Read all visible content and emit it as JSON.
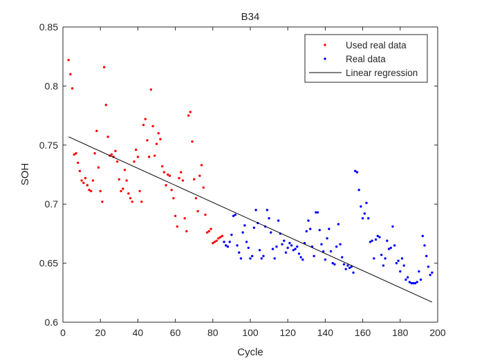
{
  "chart_data": {
    "type": "scatter",
    "title": "B34",
    "xlabel": "Cycle",
    "ylabel": "SOH",
    "xlim": [
      0,
      200
    ],
    "ylim": [
      0.6,
      0.85
    ],
    "xticks": [
      "0",
      "20",
      "40",
      "60",
      "80",
      "100",
      "120",
      "140",
      "160",
      "180",
      "200"
    ],
    "yticks": [
      "0.6",
      "0.65",
      "0.7",
      "0.75",
      "0.8",
      "0.85"
    ],
    "grid": false,
    "legend_position": "top-right",
    "series": [
      {
        "name": "Used real data",
        "kind": "points",
        "color": "#ff0000",
        "points": [
          [
            3,
            0.822
          ],
          [
            4,
            0.81
          ],
          [
            5,
            0.798
          ],
          [
            6,
            0.742
          ],
          [
            7,
            0.743
          ],
          [
            8,
            0.735
          ],
          [
            9,
            0.728
          ],
          [
            10,
            0.72
          ],
          [
            11,
            0.718
          ],
          [
            12,
            0.722
          ],
          [
            13,
            0.716
          ],
          [
            14,
            0.712
          ],
          [
            15,
            0.711
          ],
          [
            16,
            0.72
          ],
          [
            17,
            0.743
          ],
          [
            18,
            0.762
          ],
          [
            19,
            0.731
          ],
          [
            20,
            0.711
          ],
          [
            21,
            0.702
          ],
          [
            22,
            0.816
          ],
          [
            23,
            0.784
          ],
          [
            24,
            0.757
          ],
          [
            25,
            0.741
          ],
          [
            26,
            0.742
          ],
          [
            27,
            0.74
          ],
          [
            28,
            0.745
          ],
          [
            29,
            0.736
          ],
          [
            30,
            0.721
          ],
          [
            31,
            0.711
          ],
          [
            32,
            0.713
          ],
          [
            33,
            0.729
          ],
          [
            34,
            0.72
          ],
          [
            35,
            0.709
          ],
          [
            36,
            0.705
          ],
          [
            37,
            0.702
          ],
          [
            38,
            0.736
          ],
          [
            39,
            0.746
          ],
          [
            40,
            0.74
          ],
          [
            41,
            0.711
          ],
          [
            42,
            0.702
          ],
          [
            43,
            0.767
          ],
          [
            44,
            0.772
          ],
          [
            45,
            0.754
          ],
          [
            46,
            0.74
          ],
          [
            47,
            0.797
          ],
          [
            48,
            0.766
          ],
          [
            49,
            0.741
          ],
          [
            50,
            0.751
          ],
          [
            51,
            0.76
          ],
          [
            52,
            0.755
          ],
          [
            53,
            0.732
          ],
          [
            54,
            0.727
          ],
          [
            55,
            0.716
          ],
          [
            56,
            0.725
          ],
          [
            57,
            0.724
          ],
          [
            58,
            0.712
          ],
          [
            59,
            0.705
          ],
          [
            60,
            0.69
          ],
          [
            61,
            0.681
          ],
          [
            62,
            0.722
          ],
          [
            63,
            0.727
          ],
          [
            64,
            0.72
          ],
          [
            65,
            0.688
          ],
          [
            66,
            0.677
          ],
          [
            67,
            0.775
          ],
          [
            68,
            0.778
          ],
          [
            69,
            0.753
          ],
          [
            70,
            0.721
          ],
          [
            71,
            0.705
          ],
          [
            72,
            0.694
          ],
          [
            73,
            0.724
          ],
          [
            74,
            0.733
          ],
          [
            75,
            0.714
          ],
          [
            76,
            0.691
          ],
          [
            77,
            0.676
          ],
          [
            78,
            0.677
          ],
          [
            79,
            0.679
          ],
          [
            80,
            0.667
          ],
          [
            81,
            0.668
          ],
          [
            82,
            0.669
          ],
          [
            83,
            0.671
          ],
          [
            84,
            0.672
          ],
          [
            85,
            0.673
          ]
        ]
      },
      {
        "name": "Real data",
        "kind": "points",
        "color": "#0000ff",
        "points": [
          [
            86,
            0.668
          ],
          [
            87,
            0.665
          ],
          [
            88,
            0.664
          ],
          [
            89,
            0.668
          ],
          [
            90,
            0.674
          ],
          [
            91,
            0.69
          ],
          [
            92,
            0.691
          ],
          [
            93,
            0.665
          ],
          [
            94,
            0.659
          ],
          [
            95,
            0.654
          ],
          [
            96,
            0.676
          ],
          [
            97,
            0.682
          ],
          [
            98,
            0.668
          ],
          [
            99,
            0.663
          ],
          [
            100,
            0.654
          ],
          [
            101,
            0.656
          ],
          [
            102,
            0.68
          ],
          [
            103,
            0.695
          ],
          [
            104,
            0.684
          ],
          [
            105,
            0.661
          ],
          [
            106,
            0.654
          ],
          [
            107,
            0.656
          ],
          [
            108,
            0.681
          ],
          [
            109,
            0.695
          ],
          [
            110,
            0.688
          ],
          [
            111,
            0.676
          ],
          [
            112,
            0.662
          ],
          [
            113,
            0.654
          ],
          [
            114,
            0.664
          ],
          [
            115,
            0.686
          ],
          [
            116,
            0.675
          ],
          [
            117,
            0.666
          ],
          [
            118,
            0.669
          ],
          [
            119,
            0.659
          ],
          [
            120,
            0.663
          ],
          [
            121,
            0.667
          ],
          [
            122,
            0.665
          ],
          [
            123,
            0.661
          ],
          [
            124,
            0.662
          ],
          [
            125,
            0.664
          ],
          [
            126,
            0.658
          ],
          [
            127,
            0.655
          ],
          [
            128,
            0.653
          ],
          [
            129,
            0.667
          ],
          [
            130,
            0.677
          ],
          [
            131,
            0.686
          ],
          [
            132,
            0.679
          ],
          [
            133,
            0.664
          ],
          [
            134,
            0.656
          ],
          [
            135,
            0.693
          ],
          [
            136,
            0.693
          ],
          [
            137,
            0.678
          ],
          [
            138,
            0.666
          ],
          [
            139,
            0.66
          ],
          [
            140,
            0.653
          ],
          [
            141,
            0.671
          ],
          [
            142,
            0.679
          ],
          [
            143,
            0.66
          ],
          [
            144,
            0.65
          ],
          [
            145,
            0.649
          ],
          [
            146,
            0.664
          ],
          [
            147,
            0.683
          ],
          [
            148,
            0.666
          ],
          [
            149,
            0.655
          ],
          [
            150,
            0.649
          ],
          [
            151,
            0.645
          ],
          [
            152,
            0.648
          ],
          [
            153,
            0.646
          ],
          [
            154,
            0.647
          ],
          [
            155,
            0.642
          ],
          [
            156,
            0.728
          ],
          [
            157,
            0.727
          ],
          [
            158,
            0.712
          ],
          [
            159,
            0.698
          ],
          [
            160,
            0.688
          ],
          [
            161,
            0.692
          ],
          [
            162,
            0.701
          ],
          [
            163,
            0.688
          ],
          [
            164,
            0.668
          ],
          [
            165,
            0.669
          ],
          [
            166,
            0.654
          ],
          [
            167,
            0.67
          ],
          [
            168,
            0.673
          ],
          [
            169,
            0.672
          ],
          [
            170,
            0.657
          ],
          [
            171,
            0.648
          ],
          [
            172,
            0.654
          ],
          [
            173,
            0.669
          ],
          [
            174,
            0.662
          ],
          [
            175,
            0.663
          ],
          [
            176,
            0.681
          ],
          [
            177,
            0.665
          ],
          [
            178,
            0.65
          ],
          [
            179,
            0.652
          ],
          [
            180,
            0.643
          ],
          [
            181,
            0.654
          ],
          [
            182,
            0.648
          ],
          [
            183,
            0.636
          ],
          [
            184,
            0.638
          ],
          [
            185,
            0.634
          ],
          [
            186,
            0.633
          ],
          [
            187,
            0.633
          ],
          [
            188,
            0.633
          ],
          [
            189,
            0.634
          ],
          [
            190,
            0.643
          ],
          [
            191,
            0.636
          ],
          [
            192,
            0.673
          ],
          [
            193,
            0.665
          ],
          [
            194,
            0.656
          ],
          [
            195,
            0.647
          ],
          [
            196,
            0.64
          ],
          [
            197,
            0.642
          ]
        ]
      },
      {
        "name": "Linear regression",
        "kind": "line",
        "color": "#000000",
        "points": [
          [
            3,
            0.757
          ],
          [
            197,
            0.617
          ]
        ]
      }
    ]
  }
}
